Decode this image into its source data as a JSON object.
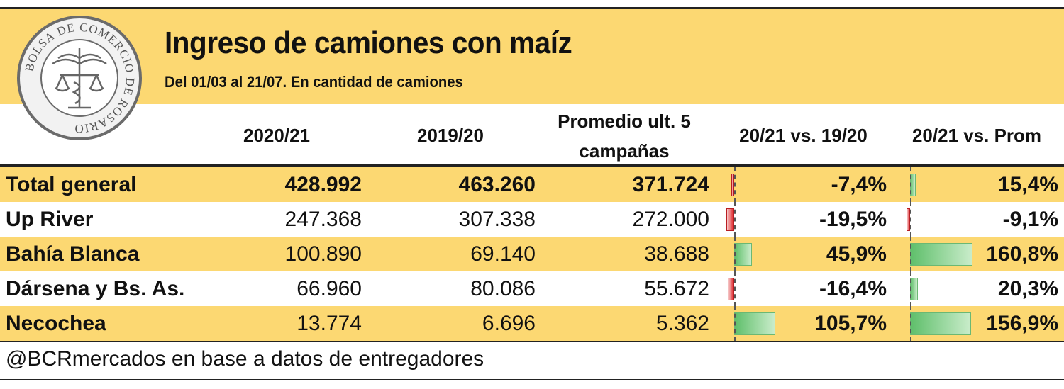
{
  "header": {
    "title": "Ingreso de camiones con maíz",
    "subtitle": "Del 01/03 al 21/07. En cantidad de camiones",
    "logo_text": "BOLSA DE COMERCIO DE ROSARIO"
  },
  "columns": {
    "c1": "2020/21",
    "c2": "2019/20",
    "c3_line1": "Promedio ult. 5",
    "c3_line2": "campañas",
    "c4": "20/21 vs. 19/20",
    "c5": "20/21 vs. Prom"
  },
  "rows": [
    {
      "name": "Total general",
      "v2021": "428.992",
      "v1920": "463.260",
      "prom": "371.724",
      "vs1920": "-7,4%",
      "vsprom": "15,4%"
    },
    {
      "name": "Up River",
      "v2021": "247.368",
      "v1920": "307.338",
      "prom": "272.000",
      "vs1920": "-19,5%",
      "vsprom": "-9,1%"
    },
    {
      "name": "Bahía Blanca",
      "v2021": "100.890",
      "v1920": "69.140",
      "prom": "38.688",
      "vs1920": "45,9%",
      "vsprom": "160,8%"
    },
    {
      "name": "Dársena y Bs. As.",
      "v2021": "66.960",
      "v1920": "80.086",
      "prom": "55.672",
      "vs1920": "-16,4%",
      "vsprom": "20,3%"
    },
    {
      "name": "Necochea",
      "v2021": "13.774",
      "v1920": "6.696",
      "prom": "5.362",
      "vs1920": "105,7%",
      "vsprom": "156,9%"
    }
  ],
  "footer": "@BCRmercados en base a datos de entregadores",
  "colors": {
    "highlight": "#fcd872",
    "positive_bar": "#5fbf6b",
    "negative_bar": "#e0262b"
  },
  "chart_data": {
    "type": "table",
    "title": "Ingreso de camiones con maíz",
    "subtitle": "Del 01/03 al 21/07. En cantidad de camiones",
    "categories": [
      "Total general",
      "Up River",
      "Bahía Blanca",
      "Dársena y Bs. As.",
      "Necochea"
    ],
    "series": [
      {
        "name": "2020/21",
        "values": [
          428992,
          247368,
          100890,
          66960,
          13774
        ]
      },
      {
        "name": "2019/20",
        "values": [
          463260,
          307338,
          69140,
          80086,
          6696
        ]
      },
      {
        "name": "Promedio ult. 5 campañas",
        "values": [
          371724,
          272000,
          38688,
          55672,
          5362
        ]
      },
      {
        "name": "20/21 vs. 19/20",
        "values": [
          -7.4,
          -19.5,
          45.9,
          -16.4,
          105.7
        ]
      },
      {
        "name": "20/21 vs. Prom",
        "values": [
          15.4,
          -9.1,
          160.8,
          20.3,
          156.9
        ]
      }
    ]
  }
}
